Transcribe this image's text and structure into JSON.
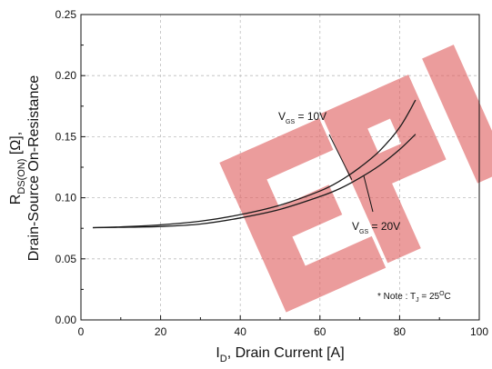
{
  "chart_data": {
    "type": "line",
    "xlabel": {
      "main": "I",
      "sub": "D",
      "rest": ", Drain Current [A]"
    },
    "ylabel": {
      "line1": {
        "main": "R",
        "sub": "DS(ON)",
        "rest": " [Ω],"
      },
      "line2": "Drain-Source On-Resistance"
    },
    "xlim": [
      0,
      100
    ],
    "ylim": [
      0.0,
      0.25
    ],
    "x_ticks": [
      0,
      20,
      40,
      60,
      80,
      100
    ],
    "y_ticks": [
      "0.00",
      "0.05",
      "0.10",
      "0.15",
      "0.20",
      "0.25"
    ],
    "grid": true,
    "series": [
      {
        "name": "VGS = 10V",
        "x": [
          3,
          10,
          20,
          30,
          40,
          50,
          60,
          65,
          70,
          75,
          80,
          84
        ],
        "y": [
          0.0755,
          0.0762,
          0.0778,
          0.0808,
          0.0862,
          0.094,
          0.1055,
          0.1138,
          0.1248,
          0.1385,
          0.1575,
          0.18
        ]
      },
      {
        "name": "VGS = 20V",
        "x": [
          3,
          10,
          20,
          30,
          40,
          50,
          60,
          65,
          70,
          75,
          80,
          84
        ],
        "y": [
          0.0755,
          0.0758,
          0.0765,
          0.0785,
          0.0835,
          0.0905,
          0.101,
          0.1075,
          0.1162,
          0.1265,
          0.1395,
          0.152
        ]
      }
    ],
    "annotations": [
      {
        "main": "V",
        "sub": "GS",
        "rest": " = 10V",
        "series": 0
      },
      {
        "main": "V",
        "sub": "GS",
        "rest": " = 20V",
        "series": 1
      }
    ],
    "note": {
      "pre": "* Note : T",
      "sub": "J",
      "mid": " = 25",
      "sup": "O",
      "post": "C"
    }
  },
  "watermark": "EPV",
  "colors": {
    "line": "#1a1a1a",
    "watermark": "#e06060",
    "grid": "#bcbcbc"
  }
}
